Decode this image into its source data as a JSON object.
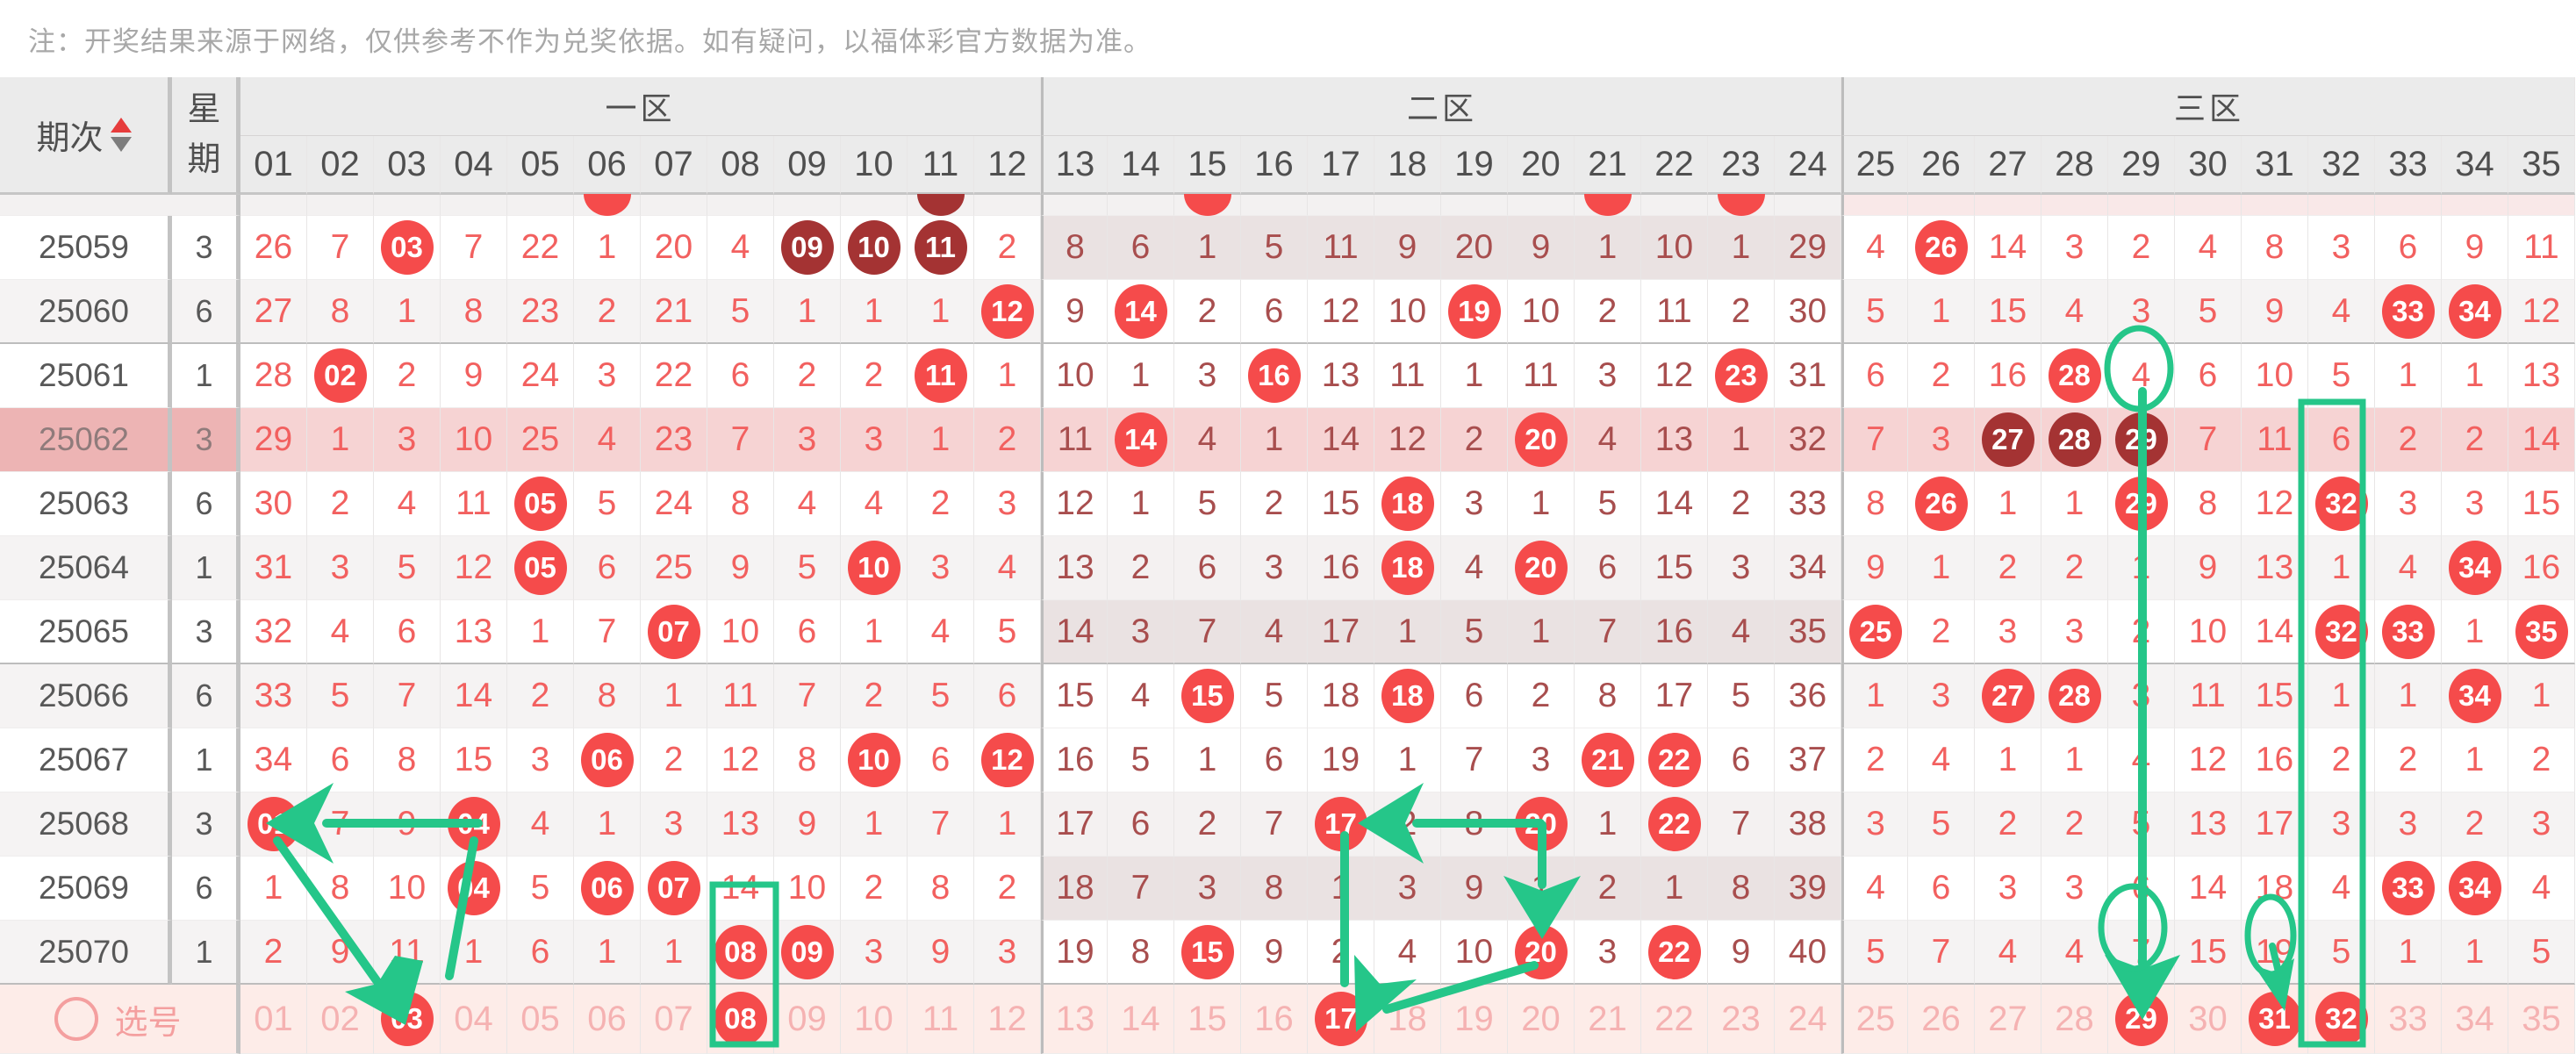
{
  "note": "注：开奖结果来源于网络，仅供参考不作为兑奖依据。如有疑问，以福体彩官方数据为准。",
  "header": {
    "period_label": "期次",
    "week_label_top": "星",
    "week_label_bottom": "期",
    "zones": [
      {
        "label": "一区",
        "cols": [
          "01",
          "02",
          "03",
          "04",
          "05",
          "06",
          "07",
          "08",
          "09",
          "10",
          "11",
          "12"
        ]
      },
      {
        "label": "二区",
        "cols": [
          "13",
          "14",
          "15",
          "16",
          "17",
          "18",
          "19",
          "20",
          "21",
          "22",
          "23",
          "24"
        ]
      },
      {
        "label": "三区",
        "cols": [
          "25",
          "26",
          "27",
          "28",
          "29",
          "30",
          "31",
          "32",
          "33",
          "34",
          "35"
        ]
      }
    ]
  },
  "partial_top_row": {
    "marks": [
      {
        "col": 6,
        "style": "red"
      },
      {
        "col": 11,
        "style": "dark"
      },
      {
        "col": 15,
        "style": "red"
      },
      {
        "col": 21,
        "style": "red"
      },
      {
        "col": 23,
        "style": "red"
      }
    ]
  },
  "rows": [
    {
      "period": "25059",
      "week": "3",
      "stripe": false,
      "z2": "mauve",
      "highlight": false,
      "rule": false,
      "vals": [
        "26",
        "7",
        "03",
        "7",
        "22",
        "1",
        "20",
        "4",
        "09",
        "10",
        "11",
        "2",
        "8",
        "6",
        "1",
        "5",
        "11",
        "9",
        "20",
        "9",
        "1",
        "10",
        "1",
        "29",
        "4",
        "26",
        "14",
        "3",
        "2",
        "4",
        "8",
        "3",
        "6",
        "9",
        "11"
      ],
      "hits": [
        3,
        9,
        10,
        11,
        26
      ],
      "dark_hits": [
        9,
        10,
        11
      ]
    },
    {
      "period": "25060",
      "week": "6",
      "stripe": true,
      "z2": "",
      "highlight": false,
      "rule": true,
      "vals": [
        "27",
        "8",
        "1",
        "8",
        "23",
        "2",
        "21",
        "5",
        "1",
        "1",
        "1",
        "12",
        "9",
        "14",
        "2",
        "6",
        "12",
        "10",
        "19",
        "10",
        "2",
        "11",
        "2",
        "30",
        "5",
        "1",
        "15",
        "4",
        "3",
        "5",
        "9",
        "4",
        "33",
        "34",
        "12"
      ],
      "hits": [
        12,
        14,
        19,
        33,
        34
      ],
      "dark_hits": []
    },
    {
      "period": "25061",
      "week": "1",
      "stripe": false,
      "z2": "",
      "highlight": false,
      "rule": false,
      "vals": [
        "28",
        "02",
        "2",
        "9",
        "24",
        "3",
        "22",
        "6",
        "2",
        "2",
        "11",
        "1",
        "10",
        "1",
        "3",
        "16",
        "13",
        "11",
        "1",
        "11",
        "3",
        "12",
        "23",
        "31",
        "6",
        "2",
        "16",
        "28",
        "4",
        "6",
        "10",
        "5",
        "1",
        "1",
        "13"
      ],
      "hits": [
        2,
        11,
        16,
        23,
        28
      ],
      "dark_hits": []
    },
    {
      "period": "25062",
      "week": "3",
      "stripe": false,
      "z2": "",
      "highlight": true,
      "rule": false,
      "vals": [
        "29",
        "1",
        "3",
        "10",
        "25",
        "4",
        "23",
        "7",
        "3",
        "3",
        "1",
        "2",
        "11",
        "14",
        "4",
        "1",
        "14",
        "12",
        "2",
        "20",
        "4",
        "13",
        "1",
        "32",
        "7",
        "3",
        "27",
        "28",
        "29",
        "7",
        "11",
        "6",
        "2",
        "2",
        "14"
      ],
      "hits": [
        14,
        20,
        27,
        28,
        29
      ],
      "dark_hits": [
        27,
        28,
        29
      ]
    },
    {
      "period": "25063",
      "week": "6",
      "stripe": false,
      "z2": "",
      "highlight": false,
      "rule": false,
      "vals": [
        "30",
        "2",
        "4",
        "11",
        "05",
        "5",
        "24",
        "8",
        "4",
        "4",
        "2",
        "3",
        "12",
        "1",
        "5",
        "2",
        "15",
        "18",
        "3",
        "1",
        "5",
        "14",
        "2",
        "33",
        "8",
        "26",
        "1",
        "1",
        "29",
        "8",
        "12",
        "32",
        "3",
        "3",
        "15"
      ],
      "hits": [
        5,
        18,
        26,
        29,
        32
      ],
      "dark_hits": []
    },
    {
      "period": "25064",
      "week": "1",
      "stripe": true,
      "z2": "gray",
      "highlight": false,
      "rule": false,
      "vals": [
        "31",
        "3",
        "5",
        "12",
        "05",
        "6",
        "25",
        "9",
        "5",
        "10",
        "3",
        "4",
        "13",
        "2",
        "6",
        "3",
        "16",
        "18",
        "4",
        "20",
        "6",
        "15",
        "3",
        "34",
        "9",
        "1",
        "2",
        "2",
        "1",
        "9",
        "13",
        "1",
        "4",
        "34",
        "16"
      ],
      "hits": [
        5,
        10,
        18,
        20,
        34
      ],
      "dark_hits": []
    },
    {
      "period": "25065",
      "week": "3",
      "stripe": false,
      "z2": "mauve",
      "highlight": false,
      "rule": true,
      "vals": [
        "32",
        "4",
        "6",
        "13",
        "1",
        "7",
        "07",
        "10",
        "6",
        "1",
        "4",
        "5",
        "14",
        "3",
        "7",
        "4",
        "17",
        "1",
        "5",
        "1",
        "7",
        "16",
        "4",
        "35",
        "25",
        "2",
        "3",
        "3",
        "2",
        "10",
        "14",
        "32",
        "33",
        "1",
        "35"
      ],
      "hits": [
        7,
        25,
        32,
        33,
        35
      ],
      "dark_hits": []
    },
    {
      "period": "25066",
      "week": "6",
      "stripe": true,
      "z2": "",
      "highlight": false,
      "rule": false,
      "vals": [
        "33",
        "5",
        "7",
        "14",
        "2",
        "8",
        "1",
        "11",
        "7",
        "2",
        "5",
        "6",
        "15",
        "4",
        "15",
        "5",
        "18",
        "18",
        "6",
        "2",
        "8",
        "17",
        "5",
        "36",
        "1",
        "3",
        "27",
        "28",
        "3",
        "11",
        "15",
        "1",
        "1",
        "34",
        "1"
      ],
      "hits": [
        15,
        18,
        27,
        28,
        34
      ],
      "dark_hits": []
    },
    {
      "period": "25067",
      "week": "1",
      "stripe": false,
      "z2": "",
      "highlight": false,
      "rule": false,
      "vals": [
        "34",
        "6",
        "8",
        "15",
        "3",
        "06",
        "2",
        "12",
        "8",
        "10",
        "6",
        "12",
        "16",
        "5",
        "1",
        "6",
        "19",
        "1",
        "7",
        "3",
        "21",
        "22",
        "6",
        "37",
        "2",
        "4",
        "1",
        "1",
        "4",
        "12",
        "16",
        "2",
        "2",
        "1",
        "2"
      ],
      "hits": [
        6,
        10,
        12,
        21,
        22
      ],
      "dark_hits": []
    },
    {
      "period": "25068",
      "week": "3",
      "stripe": true,
      "z2": "gray",
      "highlight": false,
      "rule": false,
      "vals": [
        "01",
        "7",
        "9",
        "04",
        "4",
        "1",
        "3",
        "13",
        "9",
        "1",
        "7",
        "1",
        "17",
        "6",
        "2",
        "7",
        "17",
        "2",
        "8",
        "20",
        "1",
        "22",
        "7",
        "38",
        "3",
        "5",
        "2",
        "2",
        "5",
        "13",
        "17",
        "3",
        "3",
        "2",
        "3"
      ],
      "hits": [
        1,
        4,
        17,
        20,
        22
      ],
      "dark_hits": []
    },
    {
      "period": "25069",
      "week": "6",
      "stripe": false,
      "z2": "mauve",
      "highlight": false,
      "rule": false,
      "vals": [
        "1",
        "8",
        "10",
        "04",
        "5",
        "06",
        "07",
        "14",
        "10",
        "2",
        "8",
        "2",
        "18",
        "7",
        "3",
        "8",
        "1",
        "3",
        "9",
        "1",
        "2",
        "1",
        "8",
        "39",
        "4",
        "6",
        "3",
        "3",
        "6",
        "14",
        "18",
        "4",
        "33",
        "34",
        "4"
      ],
      "hits": [
        4,
        6,
        7,
        33,
        34
      ],
      "dark_hits": []
    },
    {
      "period": "25070",
      "week": "1",
      "stripe": true,
      "z2": "",
      "highlight": false,
      "rule": true,
      "vals": [
        "2",
        "9",
        "11",
        "1",
        "6",
        "1",
        "1",
        "08",
        "09",
        "3",
        "9",
        "3",
        "19",
        "8",
        "15",
        "9",
        "2",
        "4",
        "10",
        "20",
        "3",
        "22",
        "9",
        "40",
        "5",
        "7",
        "4",
        "4",
        "7",
        "15",
        "19",
        "5",
        "1",
        "1",
        "5"
      ],
      "hits": [
        8,
        9,
        15,
        20,
        22
      ],
      "dark_hits": []
    }
  ],
  "pick_row": {
    "label": "选号",
    "selected": [
      3,
      8,
      17,
      29,
      31,
      32
    ]
  },
  "colors": {
    "red_circle": "#f54b4b",
    "dark_circle": "#a43333",
    "zone13_text": "#f2605f",
    "zone2_text": "#a84e4e",
    "ghost_text": "#f5b2b2",
    "pick_bg": "#fdece8",
    "pick_label": "#f49f9f",
    "highlight_bg": "#f6d3d3",
    "highlight_left_bg": "#edb4b4",
    "stripe_bg": "#f5f3f3",
    "zone2_mauve_bg": "#eae2e2",
    "zone2_stripe_bg": "#f4f1f1",
    "header_bg": "#ebebeb",
    "header_text": "#4f4f4f",
    "note_text": "#a8a8a8",
    "annotation_green": "#25c689",
    "sort_up": "#e63c3c",
    "sort_down": "#7d7d7d"
  }
}
